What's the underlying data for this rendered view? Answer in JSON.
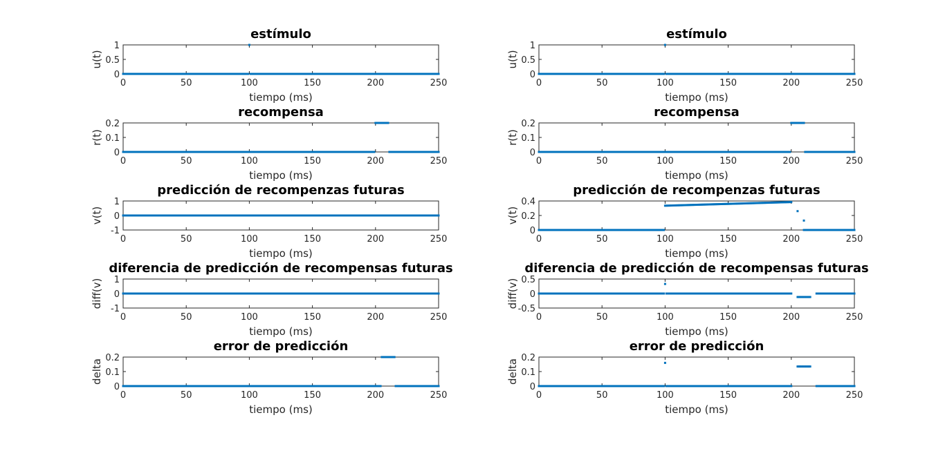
{
  "chart_data": [
    {
      "type": "scatter",
      "title": "estímulo",
      "xlabel": "tiempo (ms)",
      "ylabel": "u(t)",
      "xlim": [
        0,
        250
      ],
      "ylim": [
        0,
        1
      ],
      "xticks": [
        "0",
        "50",
        "100",
        "150",
        "200",
        "250"
      ],
      "yticks": [
        "0",
        "0.5",
        "1"
      ],
      "yticks_v": [
        0,
        0.5,
        1
      ],
      "segments": [
        {
          "x": [
            0,
            250
          ],
          "y": 0,
          "except": [
            [
              100,
              100
            ]
          ]
        },
        {
          "x": [
            100,
            100
          ],
          "y": 1
        }
      ],
      "color": "#0072BD"
    },
    {
      "type": "scatter",
      "title": "recompensa",
      "xlabel": "tiempo (ms)",
      "ylabel": "r(t)",
      "xlim": [
        0,
        250
      ],
      "ylim": [
        0,
        0.2
      ],
      "xticks": [
        "0",
        "50",
        "100",
        "150",
        "200",
        "250"
      ],
      "yticks": [
        "0",
        "0.1",
        "0.2"
      ],
      "yticks_v": [
        0,
        0.1,
        0.2
      ],
      "segments": [
        {
          "x": [
            0,
            250
          ],
          "y": 0,
          "except": [
            [
              200,
              210
            ]
          ]
        },
        {
          "x": [
            200,
            210
          ],
          "y": 0.2
        }
      ],
      "color": "#0072BD"
    },
    {
      "type": "scatter",
      "title": "predicción de recompenzas futuras",
      "xlabel": "tiempo (ms)",
      "ylabel": "v(t)",
      "xlim": [
        0,
        250
      ],
      "ylim": [
        -1,
        1
      ],
      "xticks": [
        "0",
        "50",
        "100",
        "150",
        "200",
        "250"
      ],
      "yticks": [
        "-1",
        "0",
        "1"
      ],
      "yticks_v": [
        -1,
        0,
        1
      ],
      "segments": [
        {
          "x": [
            0,
            250
          ],
          "y": 0
        }
      ],
      "color": "#0072BD"
    },
    {
      "type": "scatter",
      "title": "diferencia de predicción de recompensas futuras",
      "xlabel": "tiempo (ms)",
      "ylabel": "diff(v)",
      "xlim": [
        0,
        250
      ],
      "ylim": [
        -1,
        1
      ],
      "xticks": [
        "0",
        "50",
        "100",
        "150",
        "200",
        "250"
      ],
      "yticks": [
        "-1",
        "0",
        "1"
      ],
      "yticks_v": [
        -1,
        0,
        1
      ],
      "segments": [
        {
          "x": [
            0,
            250
          ],
          "y": 0
        }
      ],
      "color": "#0072BD"
    },
    {
      "type": "scatter",
      "title": "error de predicción",
      "xlabel": "tiempo (ms)",
      "ylabel": "delta",
      "xlim": [
        0,
        250
      ],
      "ylim": [
        0,
        0.2
      ],
      "xticks": [
        "0",
        "50",
        "100",
        "150",
        "200",
        "250"
      ],
      "yticks": [
        "0",
        "0.1",
        "0.2"
      ],
      "yticks_v": [
        0,
        0.1,
        0.2
      ],
      "segments": [
        {
          "x": [
            0,
            250
          ],
          "y": 0,
          "except": [
            [
              205,
              215
            ]
          ]
        },
        {
          "x": [
            205,
            215
          ],
          "y": 0.2
        }
      ],
      "color": "#0072BD"
    },
    {
      "type": "scatter",
      "title": "estímulo",
      "xlabel": "tiempo (ms)",
      "ylabel": "u(t)",
      "xlim": [
        0,
        250
      ],
      "ylim": [
        0,
        1
      ],
      "xticks": [
        "0",
        "50",
        "100",
        "150",
        "200",
        "250"
      ],
      "yticks": [
        "0",
        "0.5",
        "1"
      ],
      "yticks_v": [
        0,
        0.5,
        1
      ],
      "segments": [
        {
          "x": [
            0,
            250
          ],
          "y": 0,
          "except": [
            [
              100,
              100
            ]
          ]
        },
        {
          "x": [
            100,
            100
          ],
          "y": 1
        }
      ],
      "color": "#0072BD"
    },
    {
      "type": "scatter",
      "title": "recompensa",
      "xlabel": "tiempo (ms)",
      "ylabel": "r(t)",
      "xlim": [
        0,
        250
      ],
      "ylim": [
        0,
        0.2
      ],
      "xticks": [
        "0",
        "50",
        "100",
        "150",
        "200",
        "250"
      ],
      "yticks": [
        "0",
        "0.1",
        "0.2"
      ],
      "yticks_v": [
        0,
        0.1,
        0.2
      ],
      "segments": [
        {
          "x": [
            0,
            250
          ],
          "y": 0,
          "except": [
            [
              200,
              210
            ]
          ]
        },
        {
          "x": [
            200,
            210
          ],
          "y": 0.2
        }
      ],
      "color": "#0072BD"
    },
    {
      "type": "scatter",
      "title": "predicción de recompenzas futuras",
      "xlabel": "tiempo (ms)",
      "ylabel": "v(t)",
      "xlim": [
        0,
        250
      ],
      "ylim": [
        0,
        0.4
      ],
      "xticks": [
        "0",
        "50",
        "100",
        "150",
        "200",
        "250"
      ],
      "yticks": [
        "0",
        "0.2",
        "0.4"
      ],
      "yticks_v": [
        0,
        0.2,
        0.4
      ],
      "segments": [
        {
          "x": [
            0,
            99
          ],
          "y": 0
        },
        {
          "x": [
            100,
            200
          ],
          "y": [
            0.335,
            0.385
          ]
        },
        {
          "x": [
            210,
            250
          ],
          "y": 0
        }
      ],
      "points": [
        [
          205,
          0.26
        ],
        [
          210,
          0.13
        ]
      ],
      "color": "#0072BD"
    },
    {
      "type": "scatter",
      "title": "diferencia de predicción de recompensas futuras",
      "xlabel": "tiempo (ms)",
      "ylabel": "diff(v)",
      "xlim": [
        0,
        250
      ],
      "ylim": [
        -0.5,
        0.5
      ],
      "xticks": [
        "0",
        "50",
        "100",
        "150",
        "200",
        "250"
      ],
      "yticks": [
        "-0.5",
        "0",
        "0.5"
      ],
      "yticks_v": [
        -0.5,
        0,
        0.5
      ],
      "segments": [
        {
          "x": [
            0,
            99
          ],
          "y": 0
        },
        {
          "x": [
            101,
            200
          ],
          "y": 0
        },
        {
          "x": [
            205,
            215
          ],
          "y": -0.12
        },
        {
          "x": [
            220,
            250
          ],
          "y": 0
        }
      ],
      "points": [
        [
          100,
          0.33
        ]
      ],
      "color": "#0072BD"
    },
    {
      "type": "scatter",
      "title": "error de predicción",
      "xlabel": "tiempo (ms)",
      "ylabel": "delta",
      "xlim": [
        0,
        250
      ],
      "ylim": [
        0,
        0.2
      ],
      "xticks": [
        "0",
        "50",
        "100",
        "150",
        "200",
        "250"
      ],
      "yticks": [
        "0",
        "0.1",
        "0.2"
      ],
      "yticks_v": [
        0,
        0.1,
        0.2
      ],
      "segments": [
        {
          "x": [
            0,
            99
          ],
          "y": 0
        },
        {
          "x": [
            101,
            200
          ],
          "y": 0
        },
        {
          "x": [
            205,
            215
          ],
          "y": 0.135
        },
        {
          "x": [
            220,
            250
          ],
          "y": 0
        }
      ],
      "points": [
        [
          100,
          0.16
        ]
      ],
      "color": "#0072BD"
    }
  ]
}
